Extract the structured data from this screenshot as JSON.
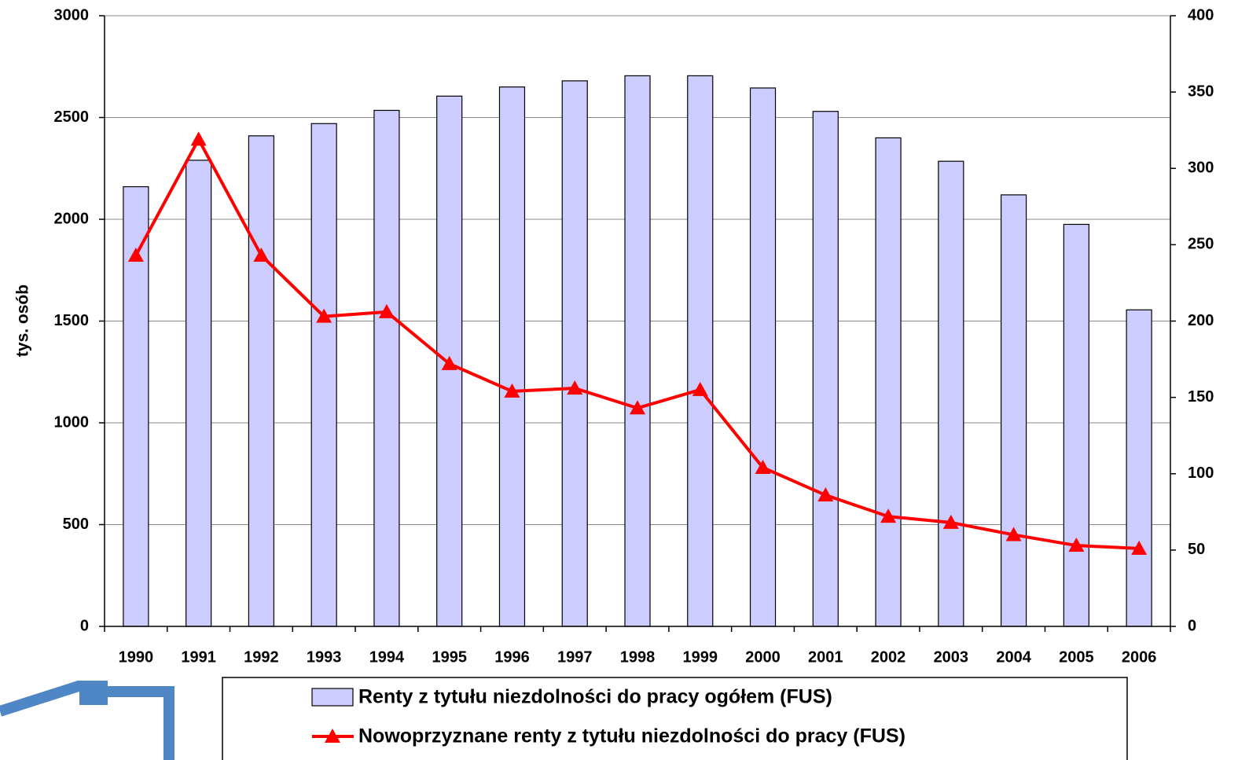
{
  "chart_data": {
    "type": "bar_line",
    "ylabel": "tys. osób",
    "categories": [
      "1990",
      "1991",
      "1992",
      "1993",
      "1994",
      "1995",
      "1996",
      "1997",
      "1998",
      "1999",
      "2000",
      "2001",
      "2002",
      "2003",
      "2004",
      "2005",
      "2006"
    ],
    "series": [
      {
        "name": "Renty z tytułu niezdolności do pracy ogółem (FUS)",
        "type": "bar",
        "color": "#ccccff",
        "values": [
          2160,
          2290,
          2410,
          2470,
          2535,
          2605,
          2650,
          2680,
          2705,
          2705,
          2645,
          2530,
          2400,
          2285,
          2120,
          1975,
          1555
        ]
      },
      {
        "name": "Nowoprzyznane renty z tytułu niezdolności do pracy (FUS)",
        "type": "line",
        "axis": "y2",
        "color": "#ff0000",
        "values": [
          243,
          319,
          243,
          203,
          206,
          172,
          154,
          156,
          143,
          155,
          104,
          86,
          72,
          68,
          60,
          53,
          51
        ]
      }
    ],
    "ylim": [
      0,
      3000
    ],
    "yticks": [
      0,
      500,
      1000,
      1500,
      2000,
      2500,
      3000
    ],
    "y2lim": [
      0,
      400
    ],
    "y2ticks": [
      0,
      50,
      100,
      150,
      200,
      250,
      300,
      350,
      400
    ],
    "grid": true
  }
}
